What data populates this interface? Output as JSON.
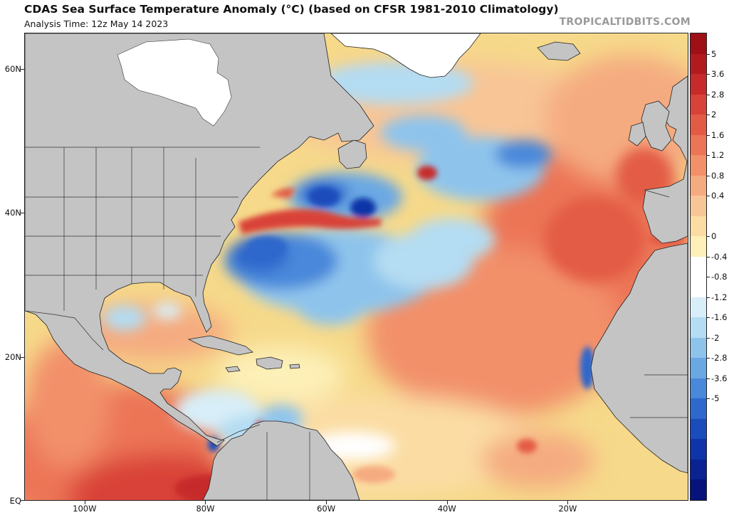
{
  "header": {
    "title": "CDAS Sea Surface Temperature Anomaly (°C) (based on CFSR 1981-2010 Climatology)",
    "analysis_time": "Analysis Time: 12z May 14 2023",
    "brand": "TROPICALTIDBITS.COM"
  },
  "map": {
    "projection": "equirectangular",
    "lon_range": [
      -110,
      0
    ],
    "lat_range": [
      0,
      65
    ],
    "lat_labels": [
      {
        "lat": 60,
        "label": "60N"
      },
      {
        "lat": 40,
        "label": "40N"
      },
      {
        "lat": 20,
        "label": "20N"
      },
      {
        "lat": 0,
        "label": "EQ"
      }
    ],
    "lon_labels": [
      {
        "lon": -100,
        "label": "100W"
      },
      {
        "lon": -80,
        "label": "80W"
      },
      {
        "lon": -60,
        "label": "60W"
      },
      {
        "lon": -40,
        "label": "40W"
      },
      {
        "lon": -20,
        "label": "20W"
      }
    ],
    "colors": {
      "land": "#c4c4c4",
      "ice": "#ffffff",
      "border": "#222222"
    }
  },
  "colorbar": {
    "labels": [
      "5",
      "3.6",
      "2.8",
      "2",
      "1.6",
      "1.2",
      "0.8",
      "0.4",
      "0",
      "-0.4",
      "-0.8",
      "-1.2",
      "-1.6",
      "-2",
      "-2.8",
      "-3.6",
      "-5"
    ],
    "colors": [
      "#9e0f16",
      "#b31a1e",
      "#c72a2a",
      "#d94238",
      "#e35b45",
      "#ec7457",
      "#f2906a",
      "#f5ab80",
      "#f8c596",
      "#fbdda4",
      "#fdf0b8",
      "#ffffff",
      "#ffffff",
      "#d8eef8",
      "#b4dcf2",
      "#8ec4ec",
      "#6aa8e4",
      "#4a88da",
      "#2e68cc",
      "#1a4cbc",
      "#0e34a8",
      "#0a2292",
      "#06137a"
    ]
  }
}
